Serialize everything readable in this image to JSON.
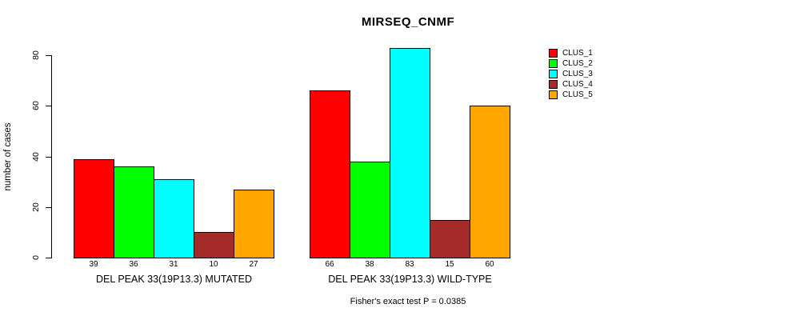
{
  "page": {
    "background": "#ffffff",
    "text_color": "#000000"
  },
  "chart_data": {
    "type": "bar",
    "title": "MIRSEQ_CNMF",
    "ylabel": "number of cases",
    "xlabel": "",
    "ylim": [
      0,
      80
    ],
    "yticks": [
      0,
      20,
      40,
      60,
      80
    ],
    "grid": false,
    "legend_position": "right",
    "categories": [
      "DEL PEAK 33(19P13.3) MUTATED",
      "DEL PEAK 33(19P13.3) WILD-TYPE"
    ],
    "series": [
      {
        "name": "CLUS_1",
        "color": "#ff0000",
        "values": [
          39,
          66
        ]
      },
      {
        "name": "CLUS_2",
        "color": "#00ff00",
        "values": [
          36,
          38
        ]
      },
      {
        "name": "CLUS_3",
        "color": "#00ffff",
        "values": [
          31,
          83
        ]
      },
      {
        "name": "CLUS_4",
        "color": "#a52a2a",
        "values": [
          10,
          15
        ]
      },
      {
        "name": "CLUS_5",
        "color": "#ffa500",
        "values": [
          27,
          60
        ]
      }
    ],
    "annotation": "Fisher's exact test P = 0.0385"
  }
}
